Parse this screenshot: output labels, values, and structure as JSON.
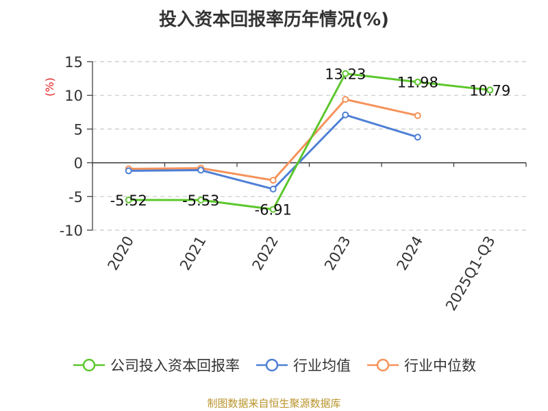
{
  "chart_data": {
    "type": "line",
    "title": "投入资本回报率历年情况(%)",
    "ylabel": "(%)",
    "categories": [
      "2020",
      "2021",
      "2022",
      "2023",
      "2024",
      "2025Q1-Q3"
    ],
    "ylim": [
      -10,
      15
    ],
    "yticks": [
      15,
      10,
      5,
      0,
      -5,
      -10
    ],
    "grid": true,
    "legend_position": "bottom",
    "series": [
      {
        "name": "公司投入资本回报率",
        "color": "#5cc72c",
        "values": [
          -5.52,
          -5.53,
          -6.91,
          13.23,
          11.98,
          10.79
        ],
        "labels": [
          "-5.52",
          "-5.53",
          "-6.91",
          "13.23",
          "11.98",
          "10.79"
        ]
      },
      {
        "name": "行业均值",
        "color": "#4e7fd6",
        "values": [
          -1.2,
          -1.1,
          -3.9,
          7.1,
          3.8,
          null
        ]
      },
      {
        "name": "行业中位数",
        "color": "#f5925a",
        "values": [
          -0.9,
          -0.8,
          -2.6,
          9.4,
          7.0,
          null
        ]
      }
    ]
  },
  "source": "制图数据来自恒生聚源数据库"
}
